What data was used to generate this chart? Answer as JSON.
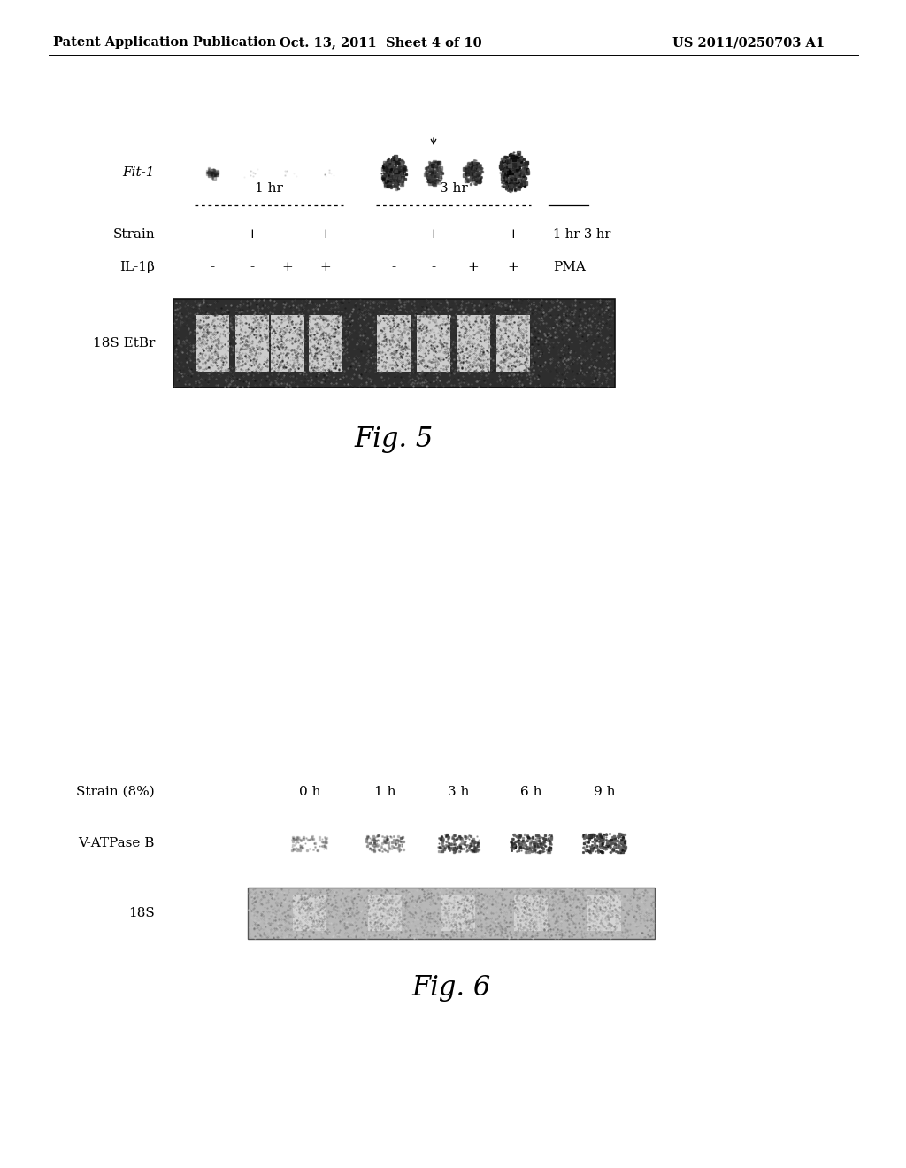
{
  "header_left": "Patent Application Publication",
  "header_mid": "Oct. 13, 2011  Sheet 4 of 10",
  "header_right": "US 2011/0250703 A1",
  "bg_color": "#ffffff",
  "fig5_label_fit1": "Fit-1",
  "fig5_label_1hr": "1 hr",
  "fig5_label_3hr": "3 hr",
  "fig5_strain_label": "Strain",
  "fig5_il1b_label": "IL-1β",
  "fig5_strain_values": [
    "-",
    "+",
    "-",
    "+",
    "-",
    "+",
    "-",
    "+"
  ],
  "fig5_il1b_values": [
    "-",
    "-",
    "+",
    "+",
    "-",
    "-",
    "+",
    "+"
  ],
  "fig5_pma_label": "PMA",
  "fig5_1hr3hr_label": "1 hr 3 hr",
  "fig5_18s_label": "18S EtBr",
  "fig5_spot_sizes": [
    22,
    5,
    3,
    4,
    52,
    38,
    40,
    62
  ],
  "fig5_spot_intensities": [
    0.42,
    0.12,
    0.1,
    0.1,
    0.75,
    0.52,
    0.62,
    0.88
  ],
  "fig5_caption": "Fig. 5",
  "fig6_strain_label": "Strain (8%)",
  "fig6_time_labels": [
    "0 h",
    "1 h",
    "3 h",
    "6 h",
    "9 h"
  ],
  "fig6_vatpase_label": "V-ATPase B",
  "fig6_18s_label": "18S",
  "fig6_band_intensities": [
    0.28,
    0.4,
    0.58,
    0.68,
    0.78
  ],
  "fig6_caption": "Fig. 6"
}
